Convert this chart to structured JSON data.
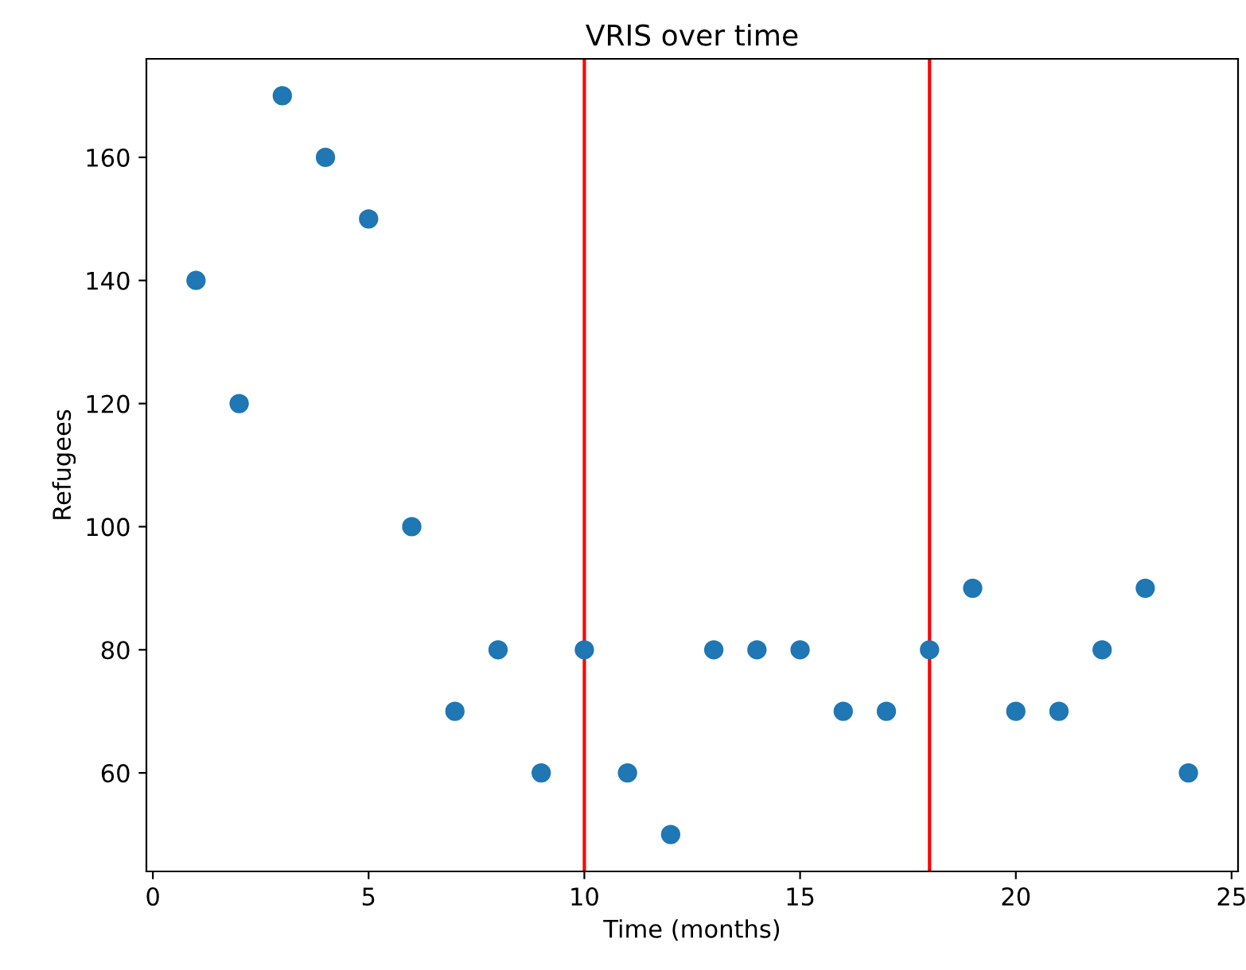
{
  "chart_data": {
    "type": "scatter",
    "title": "VRIS over time",
    "xlabel": "Time (months)",
    "ylabel": "Refugees",
    "x": [
      1,
      2,
      3,
      4,
      5,
      6,
      7,
      8,
      9,
      10,
      11,
      12,
      13,
      14,
      15,
      16,
      17,
      18,
      19,
      20,
      21,
      22,
      23,
      24
    ],
    "series": [
      {
        "color": "#1f77b4",
        "values": [
          140,
          120,
          170,
          160,
          150,
          100,
          70,
          80,
          60,
          80,
          60,
          50,
          80,
          80,
          80,
          70,
          70,
          80,
          90,
          70,
          70,
          80,
          90,
          60
        ]
      }
    ],
    "xlim": [
      -0.15,
      25.15
    ],
    "ylim": [
      44,
      176
    ],
    "xticks": [
      0,
      5,
      10,
      15,
      20,
      25
    ],
    "yticks": [
      60,
      80,
      100,
      120,
      140,
      160
    ],
    "ref_lines": [
      {
        "axis": "x",
        "value": 10,
        "color": "#ff0000"
      },
      {
        "axis": "x",
        "value": 18,
        "color": "#ff0000"
      }
    ],
    "marker": "circle",
    "grid": false,
    "legend": false
  }
}
